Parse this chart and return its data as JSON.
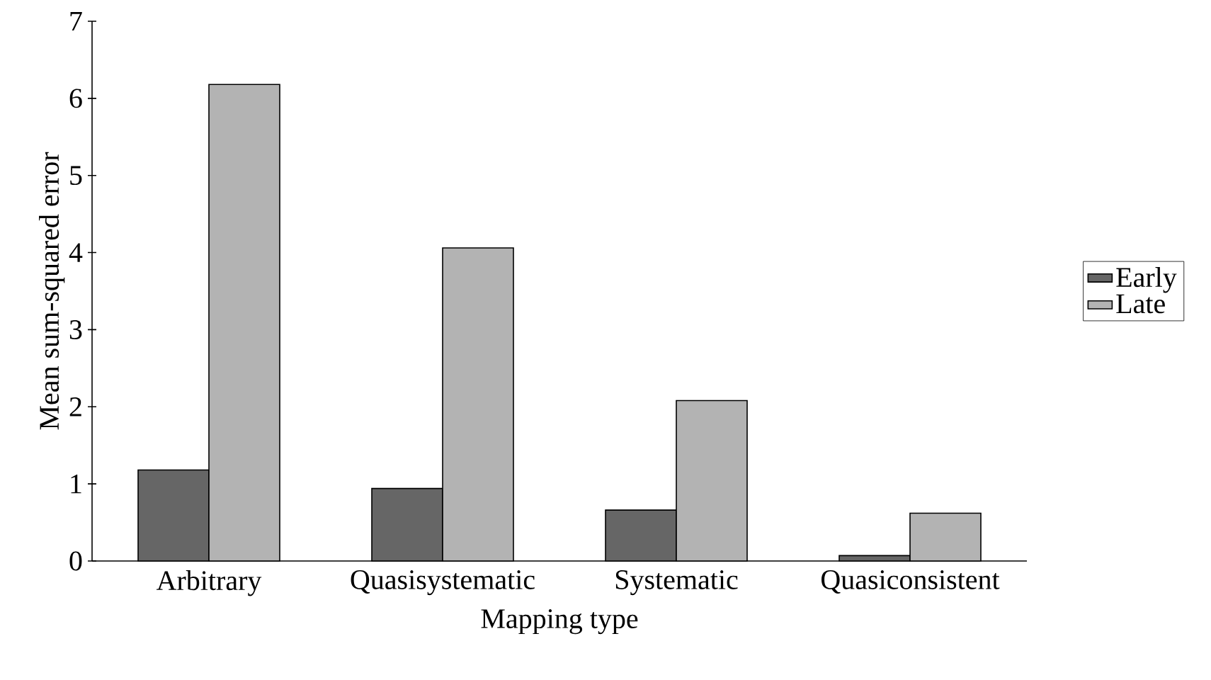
{
  "chart_data": {
    "type": "bar",
    "xlabel": "Mapping type",
    "ylabel": "Mean sum-squared error",
    "categories": [
      "Arbitrary",
      "Quasisystematic",
      "Systematic",
      "Quasiconsistent"
    ],
    "series": [
      {
        "name": "Early",
        "color": "#666666",
        "values": [
          1.18,
          0.94,
          0.66,
          0.07
        ]
      },
      {
        "name": "Late",
        "color": "#b3b3b3",
        "values": [
          6.18,
          4.06,
          2.08,
          0.62
        ]
      }
    ],
    "ylim": [
      0,
      7
    ],
    "yticks": [
      0,
      1,
      2,
      3,
      4,
      5,
      6,
      7
    ],
    "grid": false,
    "legend": "right"
  }
}
